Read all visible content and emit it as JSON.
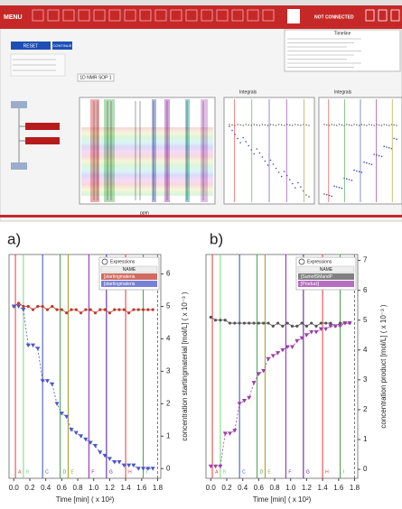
{
  "screenshot": {
    "menu": "MENU",
    "reset": "RESET",
    "continue": "CONTINUE",
    "status": "NOT CONNECTED",
    "timeline_title": "Timeline",
    "tab": "1D NMR SOP 1",
    "integrals_1": "Integrals",
    "integrals_2": "Integrals",
    "spectrum_xlabel": "ppm"
  },
  "chart_data": [
    {
      "type": "scatter",
      "panel_label": "a)",
      "xlabel": "Time [min] ( x 10²)",
      "ylabel": "concentration startingmaterial [mol/L] ( x 10⁻³ )",
      "x": [
        0,
        0.06,
        0.12,
        0.18,
        0.24,
        0.3,
        0.36,
        0.42,
        0.48,
        0.54,
        0.6,
        0.66,
        0.72,
        0.78,
        0.84,
        0.9,
        0.96,
        1.02,
        1.08,
        1.14,
        1.2,
        1.26,
        1.32,
        1.38,
        1.44,
        1.5,
        1.56,
        1.62,
        1.68,
        1.74
      ],
      "series": [
        {
          "name": "[startingmateria",
          "color": "#c0392b",
          "marker": "circle",
          "line": "solid",
          "values": [
            5.0,
            5.1,
            5.0,
            5.0,
            4.9,
            5.0,
            5.0,
            4.9,
            5.0,
            4.9,
            4.9,
            4.8,
            4.9,
            4.9,
            4.8,
            4.9,
            4.9,
            4.8,
            4.9,
            4.9,
            4.8,
            4.9,
            4.9,
            4.9,
            4.8,
            4.9,
            4.9,
            4.9,
            4.9,
            4.9
          ]
        },
        {
          "name": "[startingmateria",
          "color": "#4a56c8",
          "marker": "triangle",
          "line": "dashed",
          "values": [
            5.0,
            5.0,
            4.9,
            3.8,
            3.8,
            3.7,
            2.7,
            2.7,
            2.6,
            2.0,
            1.7,
            1.6,
            1.2,
            1.1,
            1.0,
            0.9,
            0.8,
            0.7,
            0.5,
            0.4,
            0.3,
            0.2,
            0.2,
            0.1,
            0.1,
            0.1,
            0.0,
            0.0,
            0.0,
            0.0
          ]
        }
      ],
      "events": [
        {
          "x": 0.02,
          "label": "A",
          "color": "#e53935"
        },
        {
          "x": 0.12,
          "label": "B",
          "color": "#7bd67b"
        },
        {
          "x": 0.36,
          "label": "C",
          "color": "#3949ab"
        },
        {
          "x": 0.58,
          "label": "D",
          "color": "#43a047"
        },
        {
          "x": 0.68,
          "label": "E",
          "color": "#9e9d24"
        },
        {
          "x": 0.94,
          "label": "F",
          "color": "#8e24aa"
        },
        {
          "x": 1.16,
          "label": "G",
          "color": "#4a148c"
        },
        {
          "x": 1.4,
          "label": "H",
          "color": "#e53935"
        },
        {
          "x": 1.62,
          "label": "I",
          "color": "#43a047"
        },
        {
          "x": 1.8,
          "label": null,
          "color": "#777777"
        }
      ],
      "xlim": [
        -0.06,
        1.84
      ],
      "xticks": [
        {
          "value": 0,
          "label": "0.0"
        },
        0.2,
        0.4,
        0.6,
        0.8,
        {
          "value": 1,
          "label": "1.0"
        },
        1.2,
        1.4,
        1.6,
        1.8
      ],
      "ylim": [
        -0.3,
        6.6
      ],
      "yticks": [
        0,
        1,
        2,
        3,
        4,
        5,
        6
      ],
      "legend_title": "Expressions",
      "legend_header": "NAME",
      "legend": "upper right"
    },
    {
      "type": "scatter",
      "panel_label": "b)",
      "xlabel": "Time [min] ( x 10²)",
      "ylabel": "concentration product [mol/L] ( x 10⁻³ )",
      "x": [
        0,
        0.06,
        0.12,
        0.18,
        0.24,
        0.3,
        0.36,
        0.42,
        0.48,
        0.54,
        0.6,
        0.66,
        0.72,
        0.78,
        0.84,
        0.9,
        0.96,
        1.02,
        1.08,
        1.14,
        1.2,
        1.26,
        1.32,
        1.38,
        1.44,
        1.5,
        1.56,
        1.62,
        1.68,
        1.74
      ],
      "series": [
        {
          "name": "[SumofSMandP",
          "color": "#555555",
          "marker": "circle",
          "line": "solid",
          "values": [
            5.1,
            5.0,
            5.0,
            5.0,
            4.9,
            4.9,
            4.9,
            4.9,
            4.9,
            4.9,
            4.9,
            4.9,
            4.9,
            4.8,
            4.9,
            4.8,
            4.9,
            4.8,
            4.8,
            4.9,
            4.8,
            4.9,
            4.8,
            4.9,
            4.9,
            4.9,
            4.8,
            4.9,
            4.9,
            4.9
          ]
        },
        {
          "name": "[Product]",
          "color": "#9b3fa8",
          "marker": "triangle",
          "line": "dashed",
          "values": [
            0.1,
            0.1,
            0.1,
            1.2,
            1.2,
            1.3,
            2.2,
            2.3,
            2.4,
            2.9,
            3.2,
            3.3,
            3.7,
            3.8,
            3.9,
            4.0,
            4.1,
            4.1,
            4.3,
            4.4,
            4.5,
            4.6,
            4.6,
            4.7,
            4.7,
            4.8,
            4.8,
            4.8,
            4.9,
            4.9
          ]
        }
      ],
      "events": [
        {
          "x": 0.02,
          "label": "A",
          "color": "#e53935"
        },
        {
          "x": 0.12,
          "label": "B",
          "color": "#7bd67b"
        },
        {
          "x": 0.36,
          "label": "C",
          "color": "#3949ab"
        },
        {
          "x": 0.58,
          "label": "D",
          "color": "#43a047"
        },
        {
          "x": 0.68,
          "label": "E",
          "color": "#9e9d24"
        },
        {
          "x": 0.94,
          "label": "F",
          "color": "#8e24aa"
        },
        {
          "x": 1.16,
          "label": "G",
          "color": "#4a148c"
        },
        {
          "x": 1.4,
          "label": "H",
          "color": "#e53935"
        },
        {
          "x": 1.62,
          "label": "I",
          "color": "#43a047"
        },
        {
          "x": 1.8,
          "label": null,
          "color": "#777777"
        }
      ],
      "xlim": [
        -0.06,
        1.84
      ],
      "xticks": [
        {
          "value": 0,
          "label": "0.0"
        },
        0.2,
        0.4,
        0.6,
        0.8,
        {
          "value": 1,
          "label": "1.0"
        },
        1.2,
        1.4,
        1.6,
        1.8
      ],
      "ylim": [
        -0.3,
        7.2
      ],
      "yticks": [
        0,
        1,
        2,
        3,
        4,
        5,
        6,
        7
      ],
      "legend_title": "Expressions",
      "legend_header": "NAME",
      "legend": "upper right"
    }
  ]
}
